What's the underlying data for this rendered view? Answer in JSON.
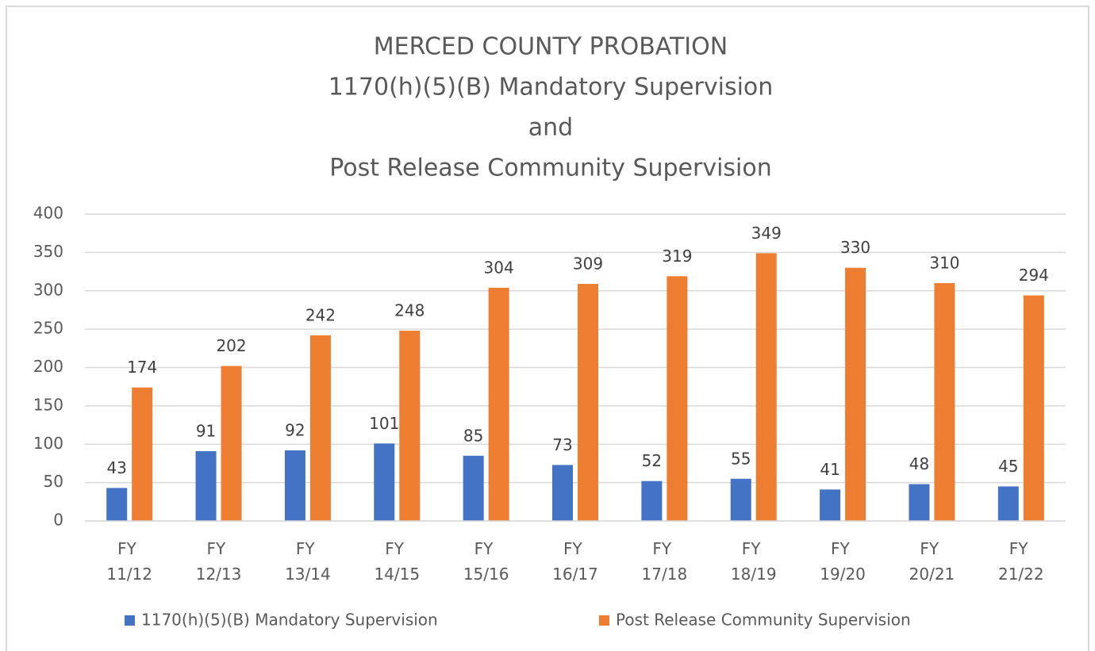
{
  "chart_data": {
    "type": "bar",
    "title": [
      "MERCED COUNTY PROBATION",
      "1170(h)(5)(B) Mandatory Supervision",
      "and",
      "Post Release Community Supervision"
    ],
    "categories": [
      "FY 11/12",
      "FY 12/13",
      "FY 13/14",
      "FY 14/15",
      "FY 15/16",
      "FY 16/17",
      "FY 17/18",
      "FY 18/19",
      "FY 19/20",
      "FY 20/21",
      "FY 21/22"
    ],
    "series": [
      {
        "name": "1170(h)(5)(B) Mandatory Supervision",
        "color": "#4472c4",
        "values": [
          43,
          91,
          92,
          101,
          85,
          73,
          52,
          55,
          41,
          48,
          45
        ]
      },
      {
        "name": "Post Release Community Supervision",
        "color": "#ed7d31",
        "values": [
          174,
          202,
          242,
          248,
          304,
          309,
          319,
          349,
          330,
          310,
          294
        ]
      }
    ],
    "ylim": [
      0,
      400
    ],
    "yticks": [
      0,
      50,
      100,
      150,
      200,
      250,
      300,
      350,
      400
    ],
    "grid": true,
    "legend": "bottom"
  }
}
